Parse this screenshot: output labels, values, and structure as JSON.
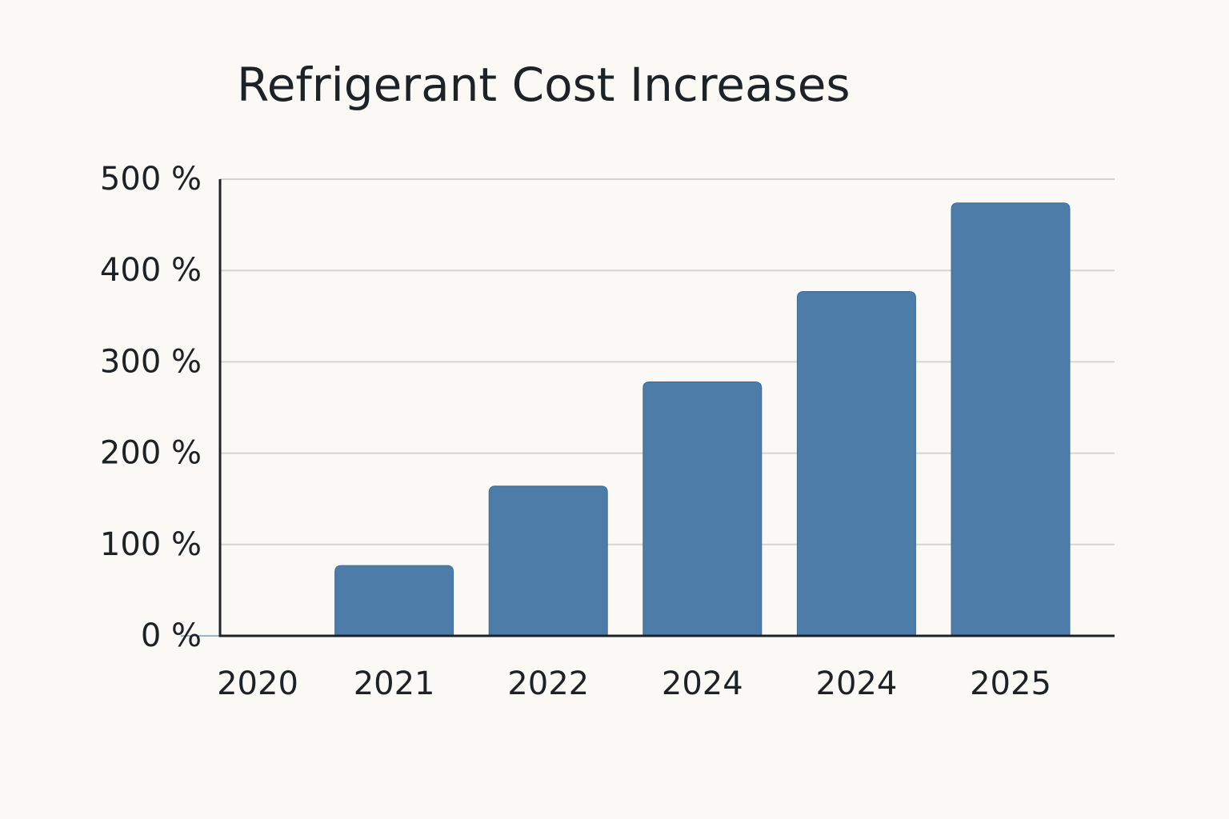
{
  "chart_data": {
    "type": "bar",
    "title": "Refrigerant Cost Increases",
    "categories": [
      "2020",
      "2021",
      "2022",
      "2024",
      "2024",
      "2025"
    ],
    "values": [
      0,
      77,
      164,
      278,
      377,
      474
    ],
    "color": "#4e7ca8",
    "ylim": [
      0,
      500
    ],
    "yticks": [
      {
        "value": 0,
        "label": "0 %"
      },
      {
        "value": 100,
        "label": "100 %"
      },
      {
        "value": 200,
        "label": "200 %"
      },
      {
        "value": 300,
        "label": "300 %"
      },
      {
        "value": 400,
        "label": "400 %"
      },
      {
        "value": 500,
        "label": "500 %"
      }
    ],
    "grid": true
  }
}
